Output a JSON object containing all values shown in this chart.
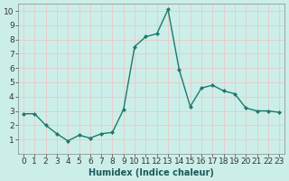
{
  "x": [
    0,
    1,
    2,
    3,
    4,
    5,
    6,
    7,
    8,
    9,
    10,
    11,
    12,
    13,
    14,
    15,
    16,
    17,
    18,
    19,
    20,
    21,
    22,
    23
  ],
  "y": [
    2.8,
    2.8,
    2.0,
    1.4,
    0.9,
    1.3,
    1.1,
    1.4,
    1.5,
    3.1,
    7.5,
    8.2,
    8.4,
    10.1,
    5.9,
    3.3,
    4.6,
    4.8,
    4.4,
    4.2,
    3.2,
    3.0,
    3.0,
    2.9
  ],
  "line_color": "#1a7a6e",
  "marker": "D",
  "marker_size": 2.0,
  "bg_color": "#cceee8",
  "grid_color": "#e8c8c8",
  "xlabel": "Humidex (Indice chaleur)",
  "xlim": [
    -0.5,
    23.5
  ],
  "ylim": [
    0,
    10.5
  ],
  "yticks": [
    1,
    2,
    3,
    4,
    5,
    6,
    7,
    8,
    9,
    10
  ],
  "xticks": [
    0,
    1,
    2,
    3,
    4,
    5,
    6,
    7,
    8,
    9,
    10,
    11,
    12,
    13,
    14,
    15,
    16,
    17,
    18,
    19,
    20,
    21,
    22,
    23
  ],
  "xlabel_fontsize": 7,
  "tick_fontsize": 6.5,
  "line_width": 1.0
}
